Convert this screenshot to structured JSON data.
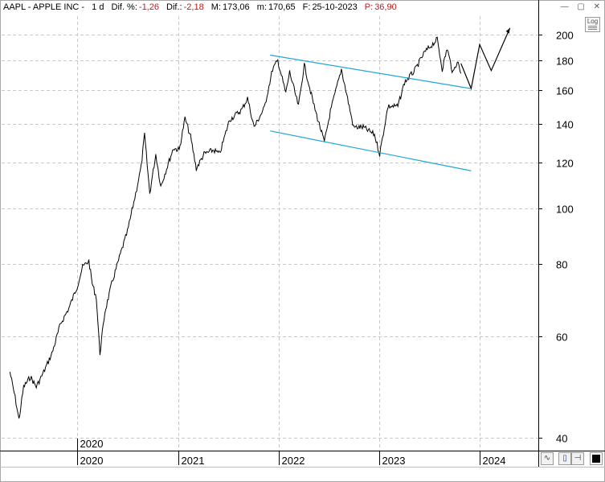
{
  "header": {
    "ticker": "AAPL - APPLE INC -",
    "period": "1 d",
    "dif_pct_label": "Dif. %:",
    "dif_pct_value": "-1,26",
    "dif_label": "Dif.:",
    "dif_value": "-2,18",
    "high_label": "M:",
    "high_value": "173,06",
    "low_label": "m:",
    "low_value": "170,65",
    "date_label": "F:",
    "date_value": "25-10-2023",
    "p_label": "P:",
    "p_value": "36,90"
  },
  "controls": {
    "log_button": "Log",
    "min_glyph": "—",
    "max_glyph": "▢",
    "close_glyph": "✕"
  },
  "colors": {
    "price": "#000000",
    "channel": "#1fa7d6",
    "negative": "#d21414",
    "grid": "#c8c8c8"
  },
  "chart_data": {
    "type": "line",
    "title": "AAPL - APPLE INC -",
    "scale": "log",
    "ylim": [
      38,
      215
    ],
    "xlim": [
      "2019-04-01",
      "2024-08-01"
    ],
    "y_ticks": [
      40,
      60,
      80,
      100,
      120,
      140,
      160,
      180,
      200
    ],
    "x_ticks": [
      {
        "label": "2020",
        "date": "2020-01-01"
      },
      {
        "label": "2021",
        "date": "2021-01-01"
      },
      {
        "label": "2022",
        "date": "2022-01-01"
      },
      {
        "label": "2023",
        "date": "2023-01-01"
      },
      {
        "label": "2024",
        "date": "2024-01-01"
      }
    ],
    "marker_label": "2020",
    "series": [
      {
        "type": "price",
        "points": [
          [
            "2019-05-01",
            52
          ],
          [
            "2019-05-20",
            47
          ],
          [
            "2019-06-03",
            43
          ],
          [
            "2019-06-20",
            49
          ],
          [
            "2019-07-15",
            51
          ],
          [
            "2019-08-05",
            49
          ],
          [
            "2019-09-01",
            52
          ],
          [
            "2019-10-01",
            56
          ],
          [
            "2019-11-01",
            63
          ],
          [
            "2019-12-01",
            67
          ],
          [
            "2019-12-31",
            73
          ],
          [
            "2020-01-20",
            79
          ],
          [
            "2020-02-12",
            81
          ],
          [
            "2020-02-24",
            74
          ],
          [
            "2020-03-10",
            70
          ],
          [
            "2020-03-23",
            56
          ],
          [
            "2020-04-10",
            66
          ],
          [
            "2020-05-05",
            74
          ],
          [
            "2020-06-08",
            84
          ],
          [
            "2020-07-01",
            91
          ],
          [
            "2020-07-31",
            106
          ],
          [
            "2020-08-20",
            118
          ],
          [
            "2020-09-01",
            134
          ],
          [
            "2020-09-20",
            106
          ],
          [
            "2020-10-12",
            124
          ],
          [
            "2020-10-30",
            109
          ],
          [
            "2020-11-20",
            117
          ],
          [
            "2020-12-15",
            127
          ],
          [
            "2021-01-05",
            126
          ],
          [
            "2021-01-26",
            143
          ],
          [
            "2021-02-15",
            133
          ],
          [
            "2021-03-08",
            117
          ],
          [
            "2021-04-05",
            124
          ],
          [
            "2021-05-10",
            126
          ],
          [
            "2021-06-01",
            124
          ],
          [
            "2021-07-06",
            142
          ],
          [
            "2021-08-20",
            148
          ],
          [
            "2021-09-10",
            155
          ],
          [
            "2021-10-04",
            138
          ],
          [
            "2021-11-10",
            149
          ],
          [
            "2021-12-10",
            174
          ],
          [
            "2021-12-29",
            180
          ],
          [
            "2022-01-27",
            158
          ],
          [
            "2022-02-10",
            172
          ],
          [
            "2022-03-14",
            150
          ],
          [
            "2022-04-04",
            177
          ],
          [
            "2022-05-10",
            150
          ],
          [
            "2022-06-16",
            130
          ],
          [
            "2022-07-08",
            147
          ],
          [
            "2022-08-17",
            174
          ],
          [
            "2022-09-30",
            138
          ],
          [
            "2022-10-14",
            138
          ],
          [
            "2022-11-04",
            138
          ],
          [
            "2022-12-15",
            134
          ],
          [
            "2023-01-03",
            124
          ],
          [
            "2023-02-02",
            150
          ],
          [
            "2023-03-10",
            150
          ],
          [
            "2023-04-03",
            165
          ],
          [
            "2023-05-10",
            173
          ],
          [
            "2023-06-15",
            186
          ],
          [
            "2023-07-31",
            196
          ],
          [
            "2023-08-18",
            174
          ],
          [
            "2023-09-05",
            189
          ],
          [
            "2023-09-26",
            171
          ],
          [
            "2023-10-12",
            180
          ],
          [
            "2023-10-25",
            171
          ]
        ]
      },
      {
        "type": "projection",
        "points": [
          [
            "2023-10-25",
            178
          ],
          [
            "2023-12-01",
            161
          ],
          [
            "2024-01-01",
            192
          ],
          [
            "2024-02-12",
            173
          ],
          [
            "2024-04-20",
            205
          ]
        ]
      },
      {
        "type": "channel-upper",
        "points": [
          [
            "2021-12-01",
            184
          ],
          [
            "2023-12-01",
            161
          ]
        ]
      },
      {
        "type": "channel-lower",
        "points": [
          [
            "2021-12-01",
            136
          ],
          [
            "2023-12-01",
            116
          ]
        ]
      }
    ]
  }
}
